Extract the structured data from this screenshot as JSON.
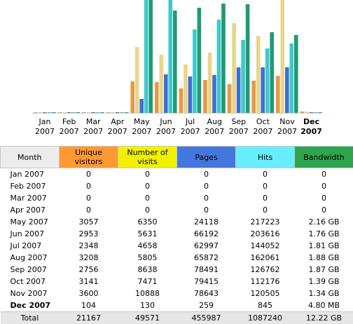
{
  "chart_data": {
    "type": "bar",
    "categories": [
      {
        "month": "Jan",
        "year": "2007"
      },
      {
        "month": "Feb",
        "year": "2007"
      },
      {
        "month": "Mar",
        "year": "2007"
      },
      {
        "month": "Apr",
        "year": "2007"
      },
      {
        "month": "May",
        "year": "2007"
      },
      {
        "month": "Jun",
        "year": "2007"
      },
      {
        "month": "Jul",
        "year": "2007"
      },
      {
        "month": "Aug",
        "year": "2007"
      },
      {
        "month": "Sep",
        "year": "2007"
      },
      {
        "month": "Oct",
        "year": "2007"
      },
      {
        "month": "Nov",
        "year": "2007"
      },
      {
        "month": "Dec",
        "year": "2007",
        "current": true
      }
    ],
    "bandwidth_unit": "GB",
    "series": [
      {
        "key": "unique_visitors",
        "color": "#e39a48",
        "values": [
          0,
          0,
          0,
          0,
          3057,
          2953,
          2348,
          3208,
          2756,
          3141,
          3600,
          104
        ]
      },
      {
        "key": "visits",
        "color": "#e8d58a",
        "values": [
          0,
          0,
          0,
          0,
          6350,
          5631,
          4658,
          5805,
          8638,
          7471,
          10888,
          130
        ]
      },
      {
        "key": "pages",
        "color": "#3f6fcf",
        "values": [
          0,
          0,
          0,
          0,
          24118,
          66192,
          62997,
          65872,
          78491,
          79415,
          78643,
          259
        ]
      },
      {
        "key": "hits",
        "color": "#3fc7cf",
        "values": [
          0,
          0,
          0,
          0,
          217223,
          203616,
          144052,
          162061,
          126762,
          112176,
          120505,
          845
        ]
      },
      {
        "key": "bandwidth",
        "color": "#1f9b74",
        "values": [
          0,
          0,
          0,
          0,
          2.16,
          1.76,
          1.81,
          1.88,
          1.87,
          1.39,
          1.34,
          0.0048
        ]
      }
    ]
  },
  "table": {
    "headers": {
      "month": "Month",
      "unique_visitors": "Unique visitors",
      "visits": "Number of visits",
      "pages": "Pages",
      "hits": "Hits",
      "bandwidth": "Bandwidth"
    },
    "rows": [
      {
        "month": "Jan 2007",
        "unique_visitors": "0",
        "visits": "0",
        "pages": "0",
        "hits": "0",
        "bandwidth": "0"
      },
      {
        "month": "Feb 2007",
        "unique_visitors": "0",
        "visits": "0",
        "pages": "0",
        "hits": "0",
        "bandwidth": "0"
      },
      {
        "month": "Mar 2007",
        "unique_visitors": "0",
        "visits": "0",
        "pages": "0",
        "hits": "0",
        "bandwidth": "0"
      },
      {
        "month": "Apr 2007",
        "unique_visitors": "0",
        "visits": "0",
        "pages": "0",
        "hits": "0",
        "bandwidth": "0"
      },
      {
        "month": "May 2007",
        "unique_visitors": "3057",
        "visits": "6350",
        "pages": "24118",
        "hits": "217223",
        "bandwidth": "2.16 GB"
      },
      {
        "month": "Jun 2007",
        "unique_visitors": "2953",
        "visits": "5631",
        "pages": "66192",
        "hits": "203616",
        "bandwidth": "1.76 GB"
      },
      {
        "month": "Jul 2007",
        "unique_visitors": "2348",
        "visits": "4658",
        "pages": "62997",
        "hits": "144052",
        "bandwidth": "1.81 GB"
      },
      {
        "month": "Aug 2007",
        "unique_visitors": "3208",
        "visits": "5805",
        "pages": "65872",
        "hits": "162061",
        "bandwidth": "1.88 GB"
      },
      {
        "month": "Sep 2007",
        "unique_visitors": "2756",
        "visits": "8638",
        "pages": "78491",
        "hits": "126762",
        "bandwidth": "1.87 GB"
      },
      {
        "month": "Oct 2007",
        "unique_visitors": "3141",
        "visits": "7471",
        "pages": "79415",
        "hits": "112176",
        "bandwidth": "1.39 GB"
      },
      {
        "month": "Nov 2007",
        "unique_visitors": "3600",
        "visits": "10888",
        "pages": "78643",
        "hits": "120505",
        "bandwidth": "1.34 GB"
      },
      {
        "month": "Dec 2007",
        "unique_visitors": "104",
        "visits": "130",
        "pages": "259",
        "hits": "845",
        "bandwidth": "4.80 MB",
        "current": true
      }
    ],
    "total": {
      "month": "Total",
      "unique_visitors": "21167",
      "visits": "49571",
      "pages": "455987",
      "hits": "1087240",
      "bandwidth": "12.22 GB"
    }
  }
}
